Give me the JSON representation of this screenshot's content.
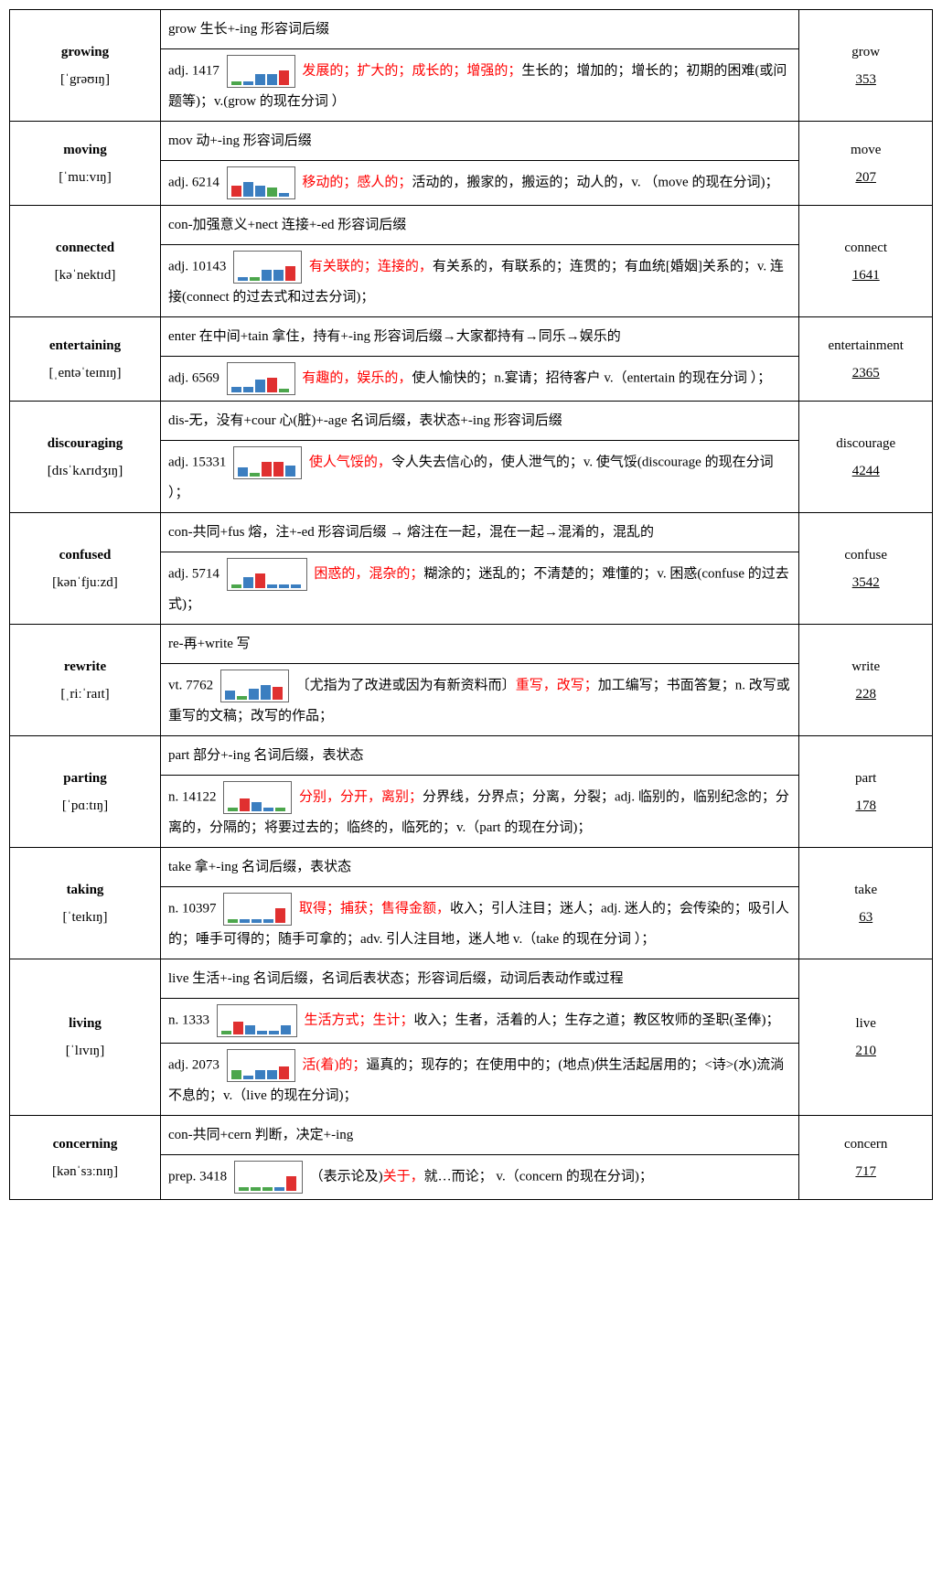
{
  "colors": {
    "border": "#000000",
    "red": "#ff0000",
    "blue": "#3b7ec0",
    "green": "#4ca64c",
    "barred": "#e03030"
  },
  "entries": [
    {
      "word": "growing",
      "pron": "[ˈgrəʊɪŋ]",
      "etym": "grow 生长+-ing 形容词后缀",
      "defs": [
        {
          "pos": "adj.",
          "rank": "1417",
          "bars": [
            {
              "c": "#4ca64c",
              "h": 4
            },
            {
              "c": "#3b7ec0",
              "h": 4
            },
            {
              "c": "#3b7ec0",
              "h": 12
            },
            {
              "c": "#3b7ec0",
              "h": 12
            },
            {
              "c": "#e03030",
              "h": 16
            }
          ],
          "red": "发展的；扩大的；成长的；增强的；",
          "rest": "生长的；增加的；增长的；初期的困难(或问题等)；v.(grow 的现在分词 ）"
        }
      ],
      "rel": "grow",
      "relnum": "353"
    },
    {
      "word": "moving",
      "pron": "[ˈmuːvɪŋ]",
      "etym": "mov 动+-ing 形容词后缀",
      "defs": [
        {
          "pos": "adj.",
          "rank": "6214",
          "bars": [
            {
              "c": "#e03030",
              "h": 12
            },
            {
              "c": "#3b7ec0",
              "h": 16
            },
            {
              "c": "#3b7ec0",
              "h": 12
            },
            {
              "c": "#4ca64c",
              "h": 10
            },
            {
              "c": "#3b7ec0",
              "h": 4
            }
          ],
          "red": "移动的；感人的；",
          "rest": "活动的，搬家的，搬运的；动人的，v.  （move 的现在分词)；"
        }
      ],
      "rel": "move",
      "relnum": "207"
    },
    {
      "word": "connected",
      "pron": "[kəˈnektɪd]",
      "etym": "con-加强意义+nect 连接+-ed 形容词后缀",
      "defs": [
        {
          "pos": "adj.",
          "rank": "10143",
          "bars": [
            {
              "c": "#3b7ec0",
              "h": 4
            },
            {
              "c": "#4ca64c",
              "h": 4
            },
            {
              "c": "#3b7ec0",
              "h": 12
            },
            {
              "c": "#3b7ec0",
              "h": 12
            },
            {
              "c": "#e03030",
              "h": 16
            }
          ],
          "red": "有关联的；连接的，",
          "rest": "有关系的，有联系的；连贯的；有血统[婚姻]关系的；v.  连接(connect 的过去式和过去分词)；"
        }
      ],
      "rel": "connect",
      "relnum": "1641"
    },
    {
      "word": "entertaining",
      "pron": "[ˌentəˈteɪnɪŋ]",
      "etym": "enter 在中间+tain 拿住，持有+-ing 形容词后缀→大家都持有→同乐→娱乐的",
      "defs": [
        {
          "pos": "adj.",
          "rank": "6569",
          "bars": [
            {
              "c": "#3b7ec0",
              "h": 6
            },
            {
              "c": "#3b7ec0",
              "h": 6
            },
            {
              "c": "#3b7ec0",
              "h": 14
            },
            {
              "c": "#e03030",
              "h": 16
            },
            {
              "c": "#4ca64c",
              "h": 4
            }
          ],
          "red": "有趣的，娱乐的，",
          "rest": "使人愉快的；n.宴请；招待客户 v.（entertain 的现在分词 ）；"
        }
      ],
      "rel": "entertainment",
      "relnum": "2365"
    },
    {
      "word": "discouraging",
      "pron": "[dɪsˈkʌrɪdʒɪŋ]",
      "etym": "dis-无，没有+cour 心(脏)+-age 名词后缀，表状态+-ing 形容词后缀",
      "defs": [
        {
          "pos": "adj.",
          "rank": "15331",
          "bars": [
            {
              "c": "#3b7ec0",
              "h": 10
            },
            {
              "c": "#4ca64c",
              "h": 4
            },
            {
              "c": "#e03030",
              "h": 16
            },
            {
              "c": "#e03030",
              "h": 16
            },
            {
              "c": "#3b7ec0",
              "h": 12
            }
          ],
          "red": "使人气馁的，",
          "rest": "令人失去信心的，使人泄气的；v.  使气馁(discourage 的现在分词 ）；"
        }
      ],
      "rel": "discourage",
      "relnum": "4244"
    },
    {
      "word": "confused",
      "pron": "[kənˈfjuːzd]",
      "etym": "con-共同+fus 熔，注+-ed 形容词后缀 → 熔注在一起，混在一起→混淆的，混乱的",
      "defs": [
        {
          "pos": "adj.",
          "rank": "5714",
          "bars": [
            {
              "c": "#4ca64c",
              "h": 4
            },
            {
              "c": "#3b7ec0",
              "h": 12
            },
            {
              "c": "#e03030",
              "h": 16
            },
            {
              "c": "#3b7ec0",
              "h": 4
            },
            {
              "c": "#3b7ec0",
              "h": 4
            },
            {
              "c": "#3b7ec0",
              "h": 4
            }
          ],
          "red": "困惑的，混杂的；",
          "rest": "糊涂的；迷乱的；不清楚的；难懂的；v.  困惑(confuse 的过去式)；"
        }
      ],
      "rel": "confuse",
      "relnum": "3542"
    },
    {
      "word": "rewrite",
      "pron": "[ˌriːˈraɪt]",
      "etym": "re-再+write 写",
      "defs": [
        {
          "pos": "vt.",
          "rank": "7762",
          "bars": [
            {
              "c": "#3b7ec0",
              "h": 10
            },
            {
              "c": "#4ca64c",
              "h": 4
            },
            {
              "c": "#3b7ec0",
              "h": 12
            },
            {
              "c": "#3b7ec0",
              "h": 16
            },
            {
              "c": "#e03030",
              "h": 14
            }
          ],
          "pre": "〔尤指为了改进或因为有新资料而〕",
          "red": "重写，改写；",
          "rest": "加工编写；书面答复；n.  改写或重写的文稿；改写的作品；"
        }
      ],
      "rel": "write",
      "relnum": "228"
    },
    {
      "word": "parting",
      "pron": "[ˈpɑːtɪŋ]",
      "etym": "part 部分+-ing 名词后缀，表状态",
      "defs": [
        {
          "pos": "n.",
          "rank": "14122",
          "bars": [
            {
              "c": "#4ca64c",
              "h": 4
            },
            {
              "c": "#e03030",
              "h": 14
            },
            {
              "c": "#3b7ec0",
              "h": 10
            },
            {
              "c": "#3b7ec0",
              "h": 4
            },
            {
              "c": "#4ca64c",
              "h": 4
            }
          ],
          "red": "  分别，分开，离别；",
          "rest": "分界线，分界点；分离，分裂；adj.  临别的，临别纪念的；分离的，分隔的；将要过去的；临终的，临死的；v.（part 的现在分词)；"
        }
      ],
      "rel": "part",
      "relnum": "178"
    },
    {
      "word": "taking",
      "pron": "[ˈteɪkɪŋ]",
      "etym": "take 拿+-ing 名词后缀，表状态",
      "defs": [
        {
          "pos": "n.",
          "rank": "10397",
          "bars": [
            {
              "c": "#4ca64c",
              "h": 4
            },
            {
              "c": "#3b7ec0",
              "h": 4
            },
            {
              "c": "#3b7ec0",
              "h": 4
            },
            {
              "c": "#3b7ec0",
              "h": 4
            },
            {
              "c": "#e03030",
              "h": 16
            }
          ],
          "red": "  取得；捕获；售得金额，",
          "rest": "收入；引人注目；迷人；adj. 迷人的；会传染的；吸引人的；唾手可得的；随手可拿的；adv. 引人注目地，迷人地 v.（take 的现在分词 ）；"
        }
      ],
      "rel": "take",
      "relnum": "63"
    },
    {
      "word": "living",
      "pron": "[ˈlɪvɪŋ]",
      "etym": "live 生活+-ing 名词后缀，名词后表状态；形容词后缀，动词后表动作或过程",
      "defs": [
        {
          "pos": "n.",
          "rank": "1333",
          "bars": [
            {
              "c": "#4ca64c",
              "h": 4
            },
            {
              "c": "#e03030",
              "h": 14
            },
            {
              "c": "#3b7ec0",
              "h": 10
            },
            {
              "c": "#3b7ec0",
              "h": 4
            },
            {
              "c": "#3b7ec0",
              "h": 4
            },
            {
              "c": "#3b7ec0",
              "h": 10
            }
          ],
          "red": "生活方式；生计；",
          "rest": "收入；生者，活着的人；生存之道；教区牧师的圣职(圣俸)；"
        },
        {
          "pos": "adj.",
          "rank": "2073",
          "bars": [
            {
              "c": "#4ca64c",
              "h": 10
            },
            {
              "c": "#3b7ec0",
              "h": 4
            },
            {
              "c": "#3b7ec0",
              "h": 10
            },
            {
              "c": "#3b7ec0",
              "h": 10
            },
            {
              "c": "#e03030",
              "h": 14
            }
          ],
          "red": "  活(着)的；",
          "rest": "逼真的；现存的；在使用中的；(地点)供生活起居用的；<诗>(水)流淌不息的；v.（live 的现在分词)；"
        }
      ],
      "rel": "live",
      "relnum": "210"
    },
    {
      "word": "concerning",
      "pron": "[kənˈsɜːnɪŋ]",
      "etym": "con-共同+cern 判断，决定+-ing",
      "defs": [
        {
          "pos": "prep.",
          "rank": "3418",
          "bars": [
            {
              "c": "#4ca64c",
              "h": 4
            },
            {
              "c": "#4ca64c",
              "h": 4
            },
            {
              "c": "#4ca64c",
              "h": 4
            },
            {
              "c": "#3b7ec0",
              "h": 4
            },
            {
              "c": "#e03030",
              "h": 16
            }
          ],
          "pre": "（表示论及)",
          "red": "关于，",
          "rest": "就…而论；  v.（concern 的现在分词)；"
        }
      ],
      "rel": "concern",
      "relnum": "717"
    }
  ]
}
